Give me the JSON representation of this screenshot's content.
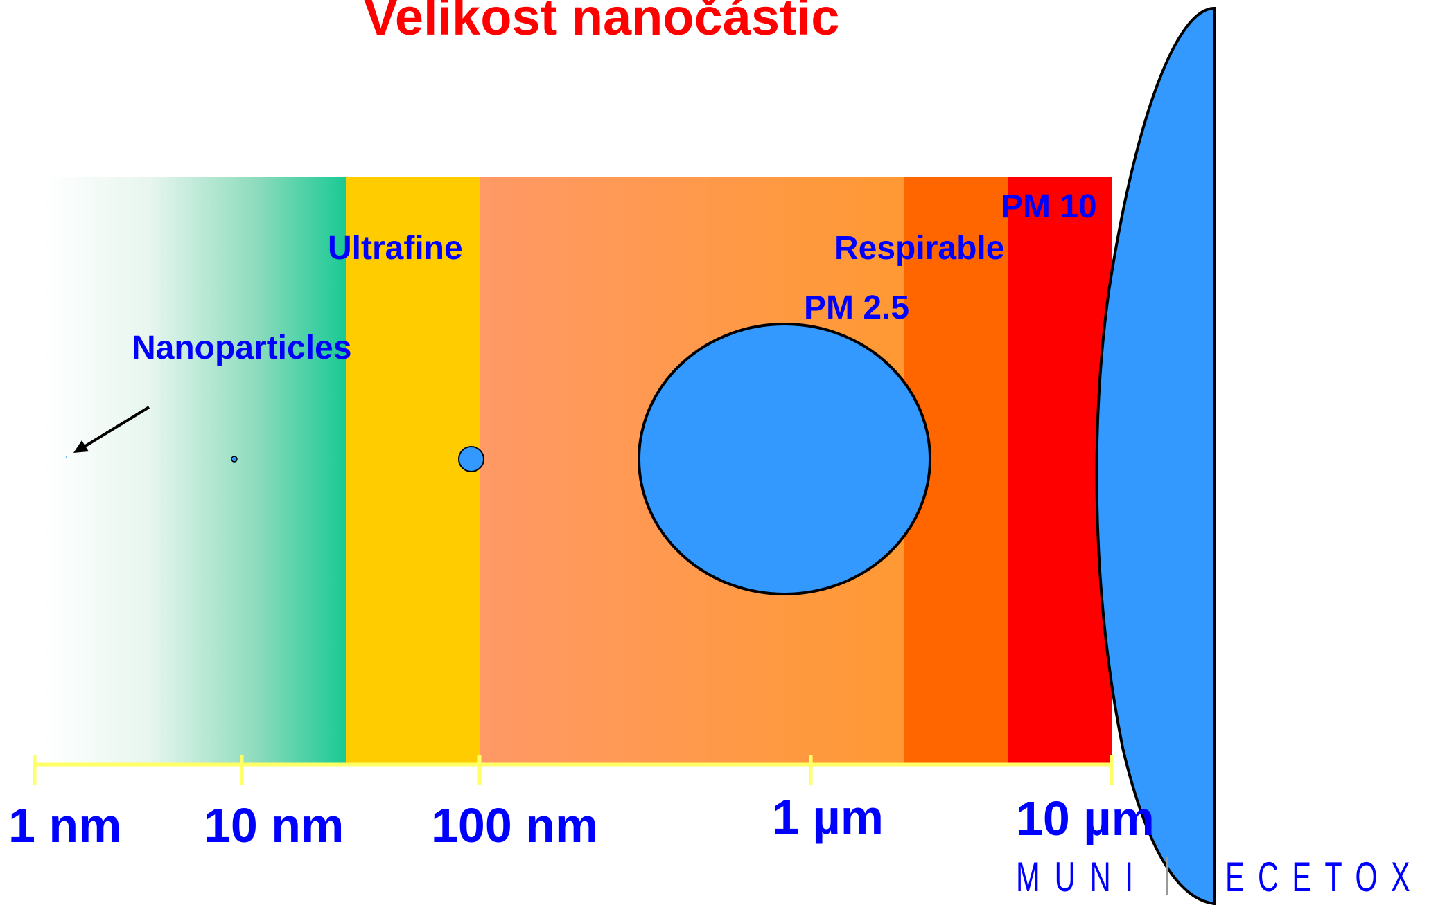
{
  "title": "Velikost nanočástic",
  "colors": {
    "title": "#ff0000",
    "label": "#0000ff",
    "scale_line": "#ffff66",
    "nano_start": "#ffffff",
    "nano_end": "#19c994",
    "ultrafine": "#ffcc00",
    "fine_start": "#ff9966",
    "fine_end": "#ff9933",
    "respirable": "#ff6600",
    "pm10": "#ff0000",
    "particle": "#3399ff",
    "outline": "#000000",
    "logo": "#0000ff",
    "logo_divider": "#999999"
  },
  "region_labels": {
    "nanoparticles": "Nanoparticles",
    "ultrafine": "Ultrafine",
    "respirable": "Respirable",
    "pm25": "PM 2.5",
    "pm10": "PM 10"
  },
  "scale_labels": {
    "nm1": "1 nm",
    "nm10": "10 nm",
    "nm100": "100 nm",
    "um1": "1 µm",
    "um10": "10 µm"
  },
  "logo": {
    "left": "MUNI",
    "right": "ECETOX"
  }
}
